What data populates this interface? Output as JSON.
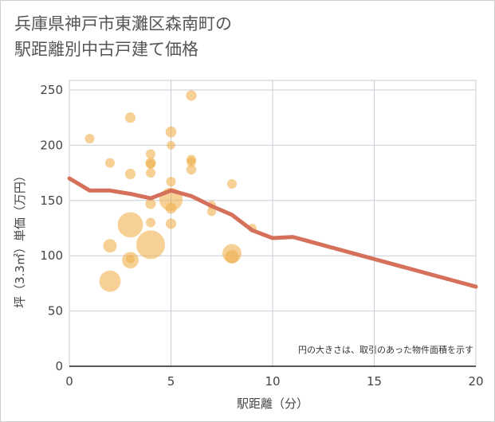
{
  "chart_data": {
    "type": "scatter",
    "title": "兵庫県神戸市東灘区森南町の\n駅距離別中古戸建て価格",
    "xlabel": "駅距離（分）",
    "ylabel": "坪（3.3㎡）単価（万円）",
    "note": "円の大きさは、取引のあった物件面積を示す",
    "xlim": [
      0,
      20
    ],
    "ylim": [
      0,
      250
    ],
    "xticks": [
      0,
      5,
      10,
      15,
      20
    ],
    "yticks": [
      0,
      50,
      100,
      150,
      200,
      250
    ],
    "grid": true,
    "colors": {
      "bubble": "#f0b14f",
      "line": "#d5705a"
    },
    "points": [
      {
        "x": 1,
        "y": 206,
        "size": 1
      },
      {
        "x": 2,
        "y": 184,
        "size": 1
      },
      {
        "x": 2,
        "y": 109,
        "size": 2
      },
      {
        "x": 2,
        "y": 77,
        "size": 5
      },
      {
        "x": 3,
        "y": 225,
        "size": 1.2
      },
      {
        "x": 3,
        "y": 174,
        "size": 1.2
      },
      {
        "x": 3,
        "y": 128,
        "size": 7
      },
      {
        "x": 3,
        "y": 96,
        "size": 3
      },
      {
        "x": 3,
        "y": 97,
        "size": 0.8
      },
      {
        "x": 4,
        "y": 192,
        "size": 1
      },
      {
        "x": 4,
        "y": 184,
        "size": 1.2
      },
      {
        "x": 4,
        "y": 183,
        "size": 1
      },
      {
        "x": 4,
        "y": 175,
        "size": 1
      },
      {
        "x": 4,
        "y": 147,
        "size": 1.2
      },
      {
        "x": 4,
        "y": 130,
        "size": 1
      },
      {
        "x": 4,
        "y": 110,
        "size": 9
      },
      {
        "x": 5,
        "y": 212,
        "size": 1.3
      },
      {
        "x": 5,
        "y": 200,
        "size": 0.8
      },
      {
        "x": 5,
        "y": 167,
        "size": 1
      },
      {
        "x": 5,
        "y": 151,
        "size": 6
      },
      {
        "x": 5,
        "y": 143,
        "size": 1.3
      },
      {
        "x": 5,
        "y": 129,
        "size": 1.2
      },
      {
        "x": 6,
        "y": 245,
        "size": 1.2
      },
      {
        "x": 6,
        "y": 187,
        "size": 1
      },
      {
        "x": 6,
        "y": 185,
        "size": 1
      },
      {
        "x": 6,
        "y": 178,
        "size": 1.1
      },
      {
        "x": 7,
        "y": 146,
        "size": 0.8
      },
      {
        "x": 7,
        "y": 140,
        "size": 0.9
      },
      {
        "x": 8,
        "y": 165,
        "size": 1
      },
      {
        "x": 8,
        "y": 102,
        "size": 4
      },
      {
        "x": 8,
        "y": 99,
        "size": 2
      },
      {
        "x": 9,
        "y": 125,
        "size": 0.8
      }
    ],
    "trend": {
      "x": [
        0,
        1,
        2,
        3,
        4,
        5,
        6,
        7,
        8,
        9,
        10,
        11,
        12,
        13,
        14,
        15,
        16,
        17,
        18,
        19,
        20
      ],
      "y": [
        170,
        159,
        159,
        156,
        152,
        159,
        154,
        145,
        137,
        123,
        116,
        117,
        112,
        107,
        102,
        97,
        92,
        87,
        82,
        77,
        72
      ]
    }
  }
}
